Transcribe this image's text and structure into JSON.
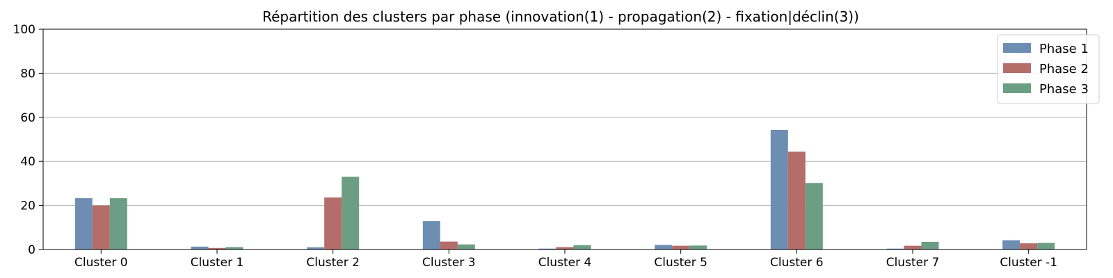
{
  "chart_data": {
    "type": "bar",
    "title": "Répartition des clusters par phase (innovation(1) - propagation(2) - fixation|déclin(3))",
    "xlabel": "",
    "ylabel": "",
    "ylim": [
      0,
      100
    ],
    "yticks": [
      "0",
      "20",
      "40",
      "60",
      "80",
      "100"
    ],
    "grid": "horizontal",
    "legend_position": "top-right",
    "categories": [
      "Cluster 0",
      "Cluster 1",
      "Cluster 2",
      "Cluster 3",
      "Cluster 4",
      "Cluster 5",
      "Cluster 6",
      "Cluster 7",
      "Cluster -1"
    ],
    "series": [
      {
        "name": "Phase 1",
        "color": "#6d8db3",
        "values": [
          23.3,
          1.3,
          1.0,
          12.9,
          0.4,
          2.1,
          54.3,
          0.4,
          4.2
        ]
      },
      {
        "name": "Phase 2",
        "color": "#b46d69",
        "values": [
          20.0,
          0.7,
          23.6,
          3.6,
          1.1,
          1.7,
          44.4,
          1.7,
          2.8
        ]
      },
      {
        "name": "Phase 3",
        "color": "#6b9e82",
        "values": [
          23.3,
          1.1,
          33.0,
          2.3,
          2.0,
          1.8,
          30.2,
          3.5,
          3.0
        ]
      }
    ]
  }
}
